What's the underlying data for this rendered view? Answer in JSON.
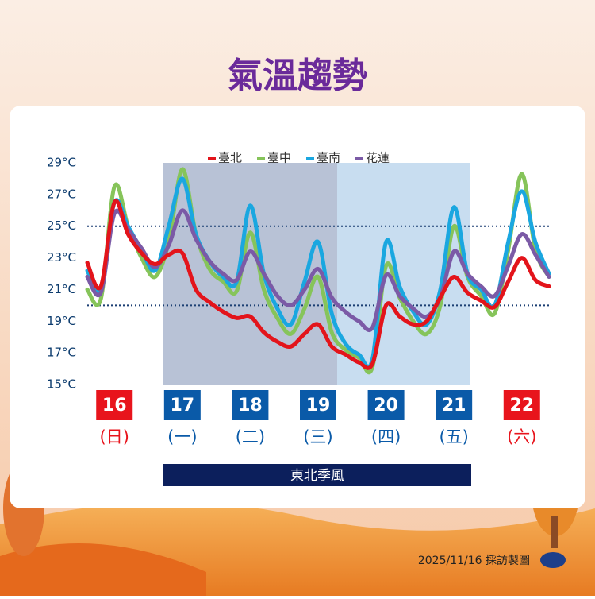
{
  "chart_data": {
    "type": "line",
    "title": "氣溫趨勢",
    "categories": [
      null,
      null,
      "16",
      null,
      null,
      null,
      null,
      "17",
      null,
      null,
      null,
      null,
      "18",
      null,
      null,
      null,
      null,
      "19",
      null,
      null,
      null,
      null,
      "20",
      null,
      null,
      null,
      null,
      "21",
      null,
      null,
      null,
      null,
      "22",
      null,
      null
    ],
    "weekday_labels": [
      "(日)",
      "(一)",
      "(二)",
      "(三)",
      "(四)",
      "(五)",
      "(六)"
    ],
    "day_colors": [
      "#e8141c",
      "#0a5aa8",
      "#0a5aa8",
      "#0a5aa8",
      "#0a5aa8",
      "#0a5aa8",
      "#e8141c"
    ],
    "series": [
      {
        "name": "臺中",
        "color": "#86c45a",
        "values": [
          21.0,
          20.4,
          27.5,
          25.0,
          23.0,
          21.8,
          24.0,
          28.6,
          24.5,
          22.3,
          21.5,
          20.9,
          24.6,
          21.0,
          19.2,
          18.2,
          19.8,
          21.8,
          18.3,
          17.2,
          16.7,
          16.1,
          22.5,
          20.5,
          19.0,
          18.2,
          20.0,
          25.0,
          21.8,
          20.6,
          19.5,
          23.5,
          28.3,
          23.5,
          21.8
        ]
      },
      {
        "name": "臺南",
        "color": "#1aa7e0",
        "values": [
          22.2,
          21.0,
          26.5,
          25.0,
          23.5,
          22.2,
          25.0,
          28.0,
          24.5,
          22.8,
          21.8,
          21.5,
          26.3,
          22.0,
          19.8,
          18.8,
          21.5,
          24.0,
          19.5,
          17.6,
          16.9,
          16.6,
          24.0,
          21.2,
          19.6,
          18.8,
          21.0,
          26.2,
          22.0,
          21.0,
          20.0,
          24.0,
          27.2,
          24.0,
          22.0
        ]
      },
      {
        "name": "花蓮",
        "color": "#7b5aa6",
        "values": [
          21.8,
          20.8,
          25.8,
          24.8,
          23.6,
          22.4,
          23.8,
          26.0,
          24.2,
          22.8,
          22.0,
          21.6,
          23.4,
          22.0,
          20.6,
          20.0,
          21.0,
          22.3,
          20.5,
          19.6,
          19.0,
          18.6,
          21.9,
          20.6,
          19.8,
          19.3,
          20.5,
          23.4,
          22.0,
          21.2,
          20.6,
          22.5,
          24.5,
          23.2,
          21.8
        ]
      },
      {
        "name": "臺北",
        "color": "#e3141b",
        "values": [
          22.7,
          21.2,
          26.5,
          24.5,
          23.3,
          22.6,
          23.2,
          23.3,
          21.0,
          20.2,
          19.6,
          19.2,
          19.3,
          18.3,
          17.7,
          17.4,
          18.2,
          18.8,
          17.4,
          16.9,
          16.4,
          16.3,
          20.0,
          19.3,
          18.8,
          19.0,
          20.5,
          21.8,
          20.8,
          20.3,
          19.9,
          21.5,
          23.0,
          21.6,
          21.2
        ]
      }
    ],
    "legend_order": [
      3,
      0,
      1,
      2
    ],
    "ylim": [
      15,
      29
    ],
    "yticks": [
      {
        "value": 15,
        "label": "15°C"
      },
      {
        "value": 17,
        "label": "17°C"
      },
      {
        "value": 19,
        "label": "19°C"
      },
      {
        "value": 21,
        "label": "21°C"
      },
      {
        "value": 23,
        "label": "23°C"
      },
      {
        "value": 25,
        "label": "25°C"
      },
      {
        "value": 27,
        "label": "27°C"
      },
      {
        "value": 29,
        "label": "29°C"
      }
    ],
    "reference_lines": [
      25,
      20
    ],
    "banner": "東北季風",
    "footer": "2025/11/16 採訪製圖"
  }
}
